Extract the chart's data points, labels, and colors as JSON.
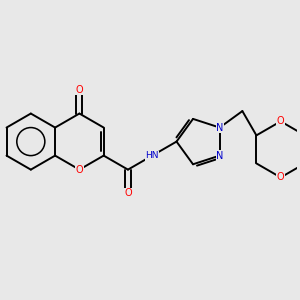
{
  "bg_color": "#e8e8e8",
  "bond_color": "#000000",
  "bond_lw": 1.4,
  "atom_colors": {
    "O": "#ff0000",
    "N": "#0000cc",
    "H_gray": "#666666"
  },
  "figsize": [
    3.0,
    3.0
  ],
  "dpi": 100,
  "xlim": [
    -1.0,
    9.5
  ],
  "ylim": [
    -3.8,
    3.2
  ],
  "L": 1.0,
  "font_size_atom": 7.0
}
